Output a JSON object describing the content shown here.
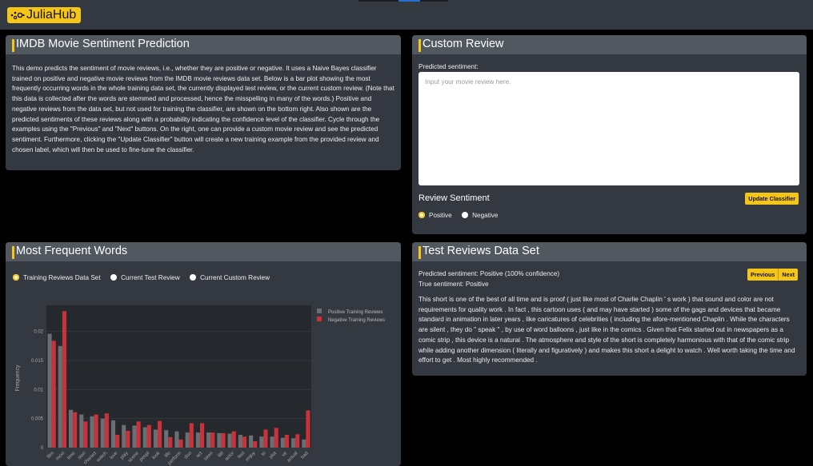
{
  "header": {
    "logo": "JuliaHub"
  },
  "intro": {
    "title": "IMDB Movie Sentiment Prediction",
    "text": "This demo predicts the sentiment of movie reviews, i.e., whether they are positive or negative. It uses a Naive Bayes classifier trained on positive and negative movie reviews from the IMDB movie reviews data set. Below is a bar plot showing the most frequently occurring words in the whole training data set, the currently displayed test review, or the current custom review. (Note that this data is collected after the words are stemmed and processed, hence the misspelling in many of the words.) Positive and negative reviews from the data set, but not used for training the classifier, are shown on the bottom right. Also shown are the predicted sentiments of these reviews along with a probability indicating the confidence level of the classifier. Cycle through the examples using the \"Previous\" and \"Next\" buttons. On the right, one can provide a custom movie review and see the predicted sentiment. Furthermore, clicking the \"Update Classifier\" button will create a new training example from the provided review and chosen label, which will then be used to fine-tune the classifier."
  },
  "custom": {
    "title": "Custom Review",
    "predicted_label": "Predicted sentiment:",
    "placeholder": "Input your movie review here.",
    "sentiment_label": "Review Sentiment",
    "options": [
      "Positive",
      "Negative"
    ],
    "selected": "Positive",
    "update_button": "Update Classifier"
  },
  "words": {
    "title": "Most Frequent Words",
    "options": [
      "Training Reviews Data Set",
      "Current Test Review",
      "Current Custom Review"
    ],
    "selected": "Training Reviews Data Set"
  },
  "test": {
    "title": "Test Reviews Data Set",
    "predicted": "Predicted sentiment: Positive (100% confidence)",
    "true": "True sentiment: Positive",
    "prev_button": "Previous",
    "next_button": "Next",
    "review": "This short is one of the best of all time and is proof ( just like most of Charlie Chaplin ' s work ) that sound and color are not requirements for quality work . In fact , this cartoon uses ( and may have started ) some of the gags and devices that became standard in animation in later years , like caricatures of celebrities ( including the afore-mentioned Chaplin . While the characters are silent , they do \" speak \" , by use of word balloons , just like in the comics . Given that Felix started out in newspapers as a comic strip , this device is a natural . The atmosphere and style of the short is completely harmonious with that of the comic strip while adding another dimension ( literally and figuratively ) and makes this short a delight to watch . Well worth taking the time and effort to get . Most highly recommended ."
  },
  "colors": {
    "accent": "#f5c518",
    "positive": "#6b6e73",
    "negative": "#c8323a"
  },
  "chart_data": {
    "type": "bar",
    "ylabel": "Frequency",
    "xlabel": "",
    "ylim": [
      0,
      0.0245
    ],
    "grid": true,
    "legend": "top-right",
    "yticks": [
      "0",
      "0.005",
      "0.01",
      "0.015",
      "0.02"
    ],
    "categories": [
      "film",
      "movi",
      "time",
      "stori",
      "charact",
      "watch",
      "love",
      "play",
      "scene",
      "peopl",
      "look",
      "life",
      "perform",
      "don",
      "act",
      "seen",
      "littl",
      "actor",
      "feel",
      "enjoy",
      "tri",
      "plot",
      "ve",
      "actual",
      "bad"
    ],
    "series": [
      {
        "name": "Positive Training Reviews",
        "values": [
          0.0196,
          0.0175,
          0.0065,
          0.0057,
          0.0054,
          0.005,
          0.0047,
          0.0039,
          0.0038,
          0.0035,
          0.0031,
          0.003,
          0.0028,
          0.0026,
          0.0026,
          0.0026,
          0.0025,
          0.0024,
          0.0022,
          0.0021,
          0.0019,
          0.0019,
          0.0017,
          0.0016,
          0.0014
        ]
      },
      {
        "name": "Negative Training Reviews",
        "values": [
          0.0184,
          0.0235,
          0.0061,
          0.0045,
          0.0057,
          0.0059,
          0.0022,
          0.0029,
          0.0045,
          0.0039,
          0.0046,
          0.0018,
          0.0014,
          0.0042,
          0.0042,
          0.0026,
          0.0025,
          0.0028,
          0.0019,
          0.0011,
          0.0031,
          0.0034,
          0.0022,
          0.0023,
          0.0064
        ]
      }
    ]
  }
}
